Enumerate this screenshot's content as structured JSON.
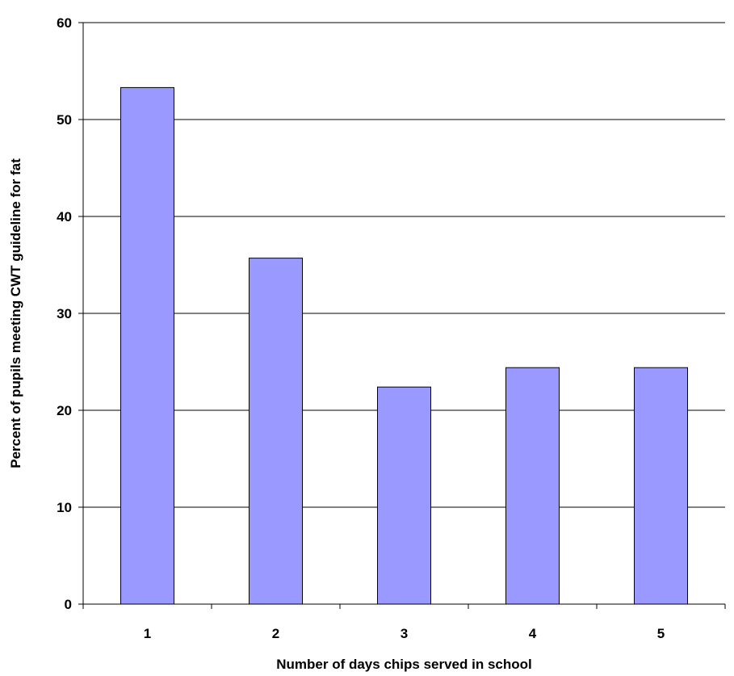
{
  "chart_data": {
    "type": "bar",
    "title": "",
    "xlabel": "Number of days chips served in school",
    "ylabel": "Percent of pupils meeting CWT guideline for fat",
    "categories": [
      "1",
      "2",
      "3",
      "4",
      "5"
    ],
    "values": [
      53.3,
      35.7,
      22.4,
      24.4,
      24.4
    ],
    "ylim": [
      0,
      60
    ],
    "yticks": [
      0,
      10,
      20,
      30,
      40,
      50,
      60
    ],
    "grid": true,
    "legend": "none",
    "colors": {
      "bar_fill": "#9999ff",
      "bar_stroke": "#000000",
      "grid": "#000000",
      "axis": "#000000"
    }
  }
}
